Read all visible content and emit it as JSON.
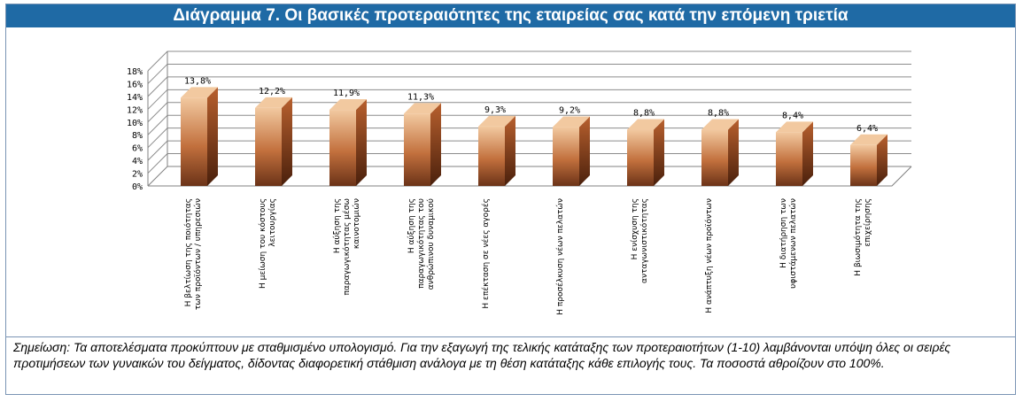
{
  "title": "Διάγραμμα 7. Οι βασικές προτεραιότητες της εταιρείας σας κατά την επόμενη τριετία",
  "note": "Σημείωση: Τα αποτελέσματα προκύπτουν με σταθμισμένο υπολογισμό. Για την εξαγωγή της τελικής κατάταξης των προτεραιοτήτων (1-10) λαμβάνονται υπόψη όλες οι σειρές προτιμήσεων των γυναικών του δείγματος, δίδοντας διαφορετική στάθμιση ανάλογα με τη θέση κατάταξης κάθε επιλογής τους. Τα ποσοστά αθροίζουν στο 100%.",
  "colors": {
    "title_bg": "#1f6aa5",
    "bar_top": "#f2c9a0",
    "bar_mid": "#c2703d",
    "bar_bottom": "#6b3318"
  },
  "chart_data": {
    "type": "bar",
    "categories": [
      "Η βελτίωση της ποιότητας των προϊόντων / υπηρεσιών",
      "Η μείωση του κόστους λειτουργίας",
      "Η αύξηση της παραγωγικότητας μέσω καινοτομιών",
      "Η αύξηση της παραγωγικότητας του ανθρώπινου δυναμικού",
      "Η επέκταση σε νέες αγορές",
      "Η προσέλκυση νέων πελατών",
      "Η ενίσχυση της ανταγωνιστικότητας",
      "Η ανάπτυξη νέων προϊόντων",
      "Η διατήρηση των υφιστάμενων πελατών",
      "Η βιωσιμότητα της επιχείρησης"
    ],
    "values": [
      13.8,
      12.2,
      11.9,
      11.3,
      9.3,
      9.2,
      8.8,
      8.8,
      8.4,
      6.4
    ],
    "value_labels": [
      "13,8%",
      "12,2%",
      "11,9%",
      "11,3%",
      "9,3%",
      "9,2%",
      "8,8%",
      "8,8%",
      "8,4%",
      "6,4%"
    ],
    "y_ticks": [
      "0%",
      "2%",
      "4%",
      "6%",
      "8%",
      "10%",
      "12%",
      "14%",
      "16%",
      "18%"
    ],
    "ylim": [
      0,
      18
    ],
    "grid": true
  }
}
